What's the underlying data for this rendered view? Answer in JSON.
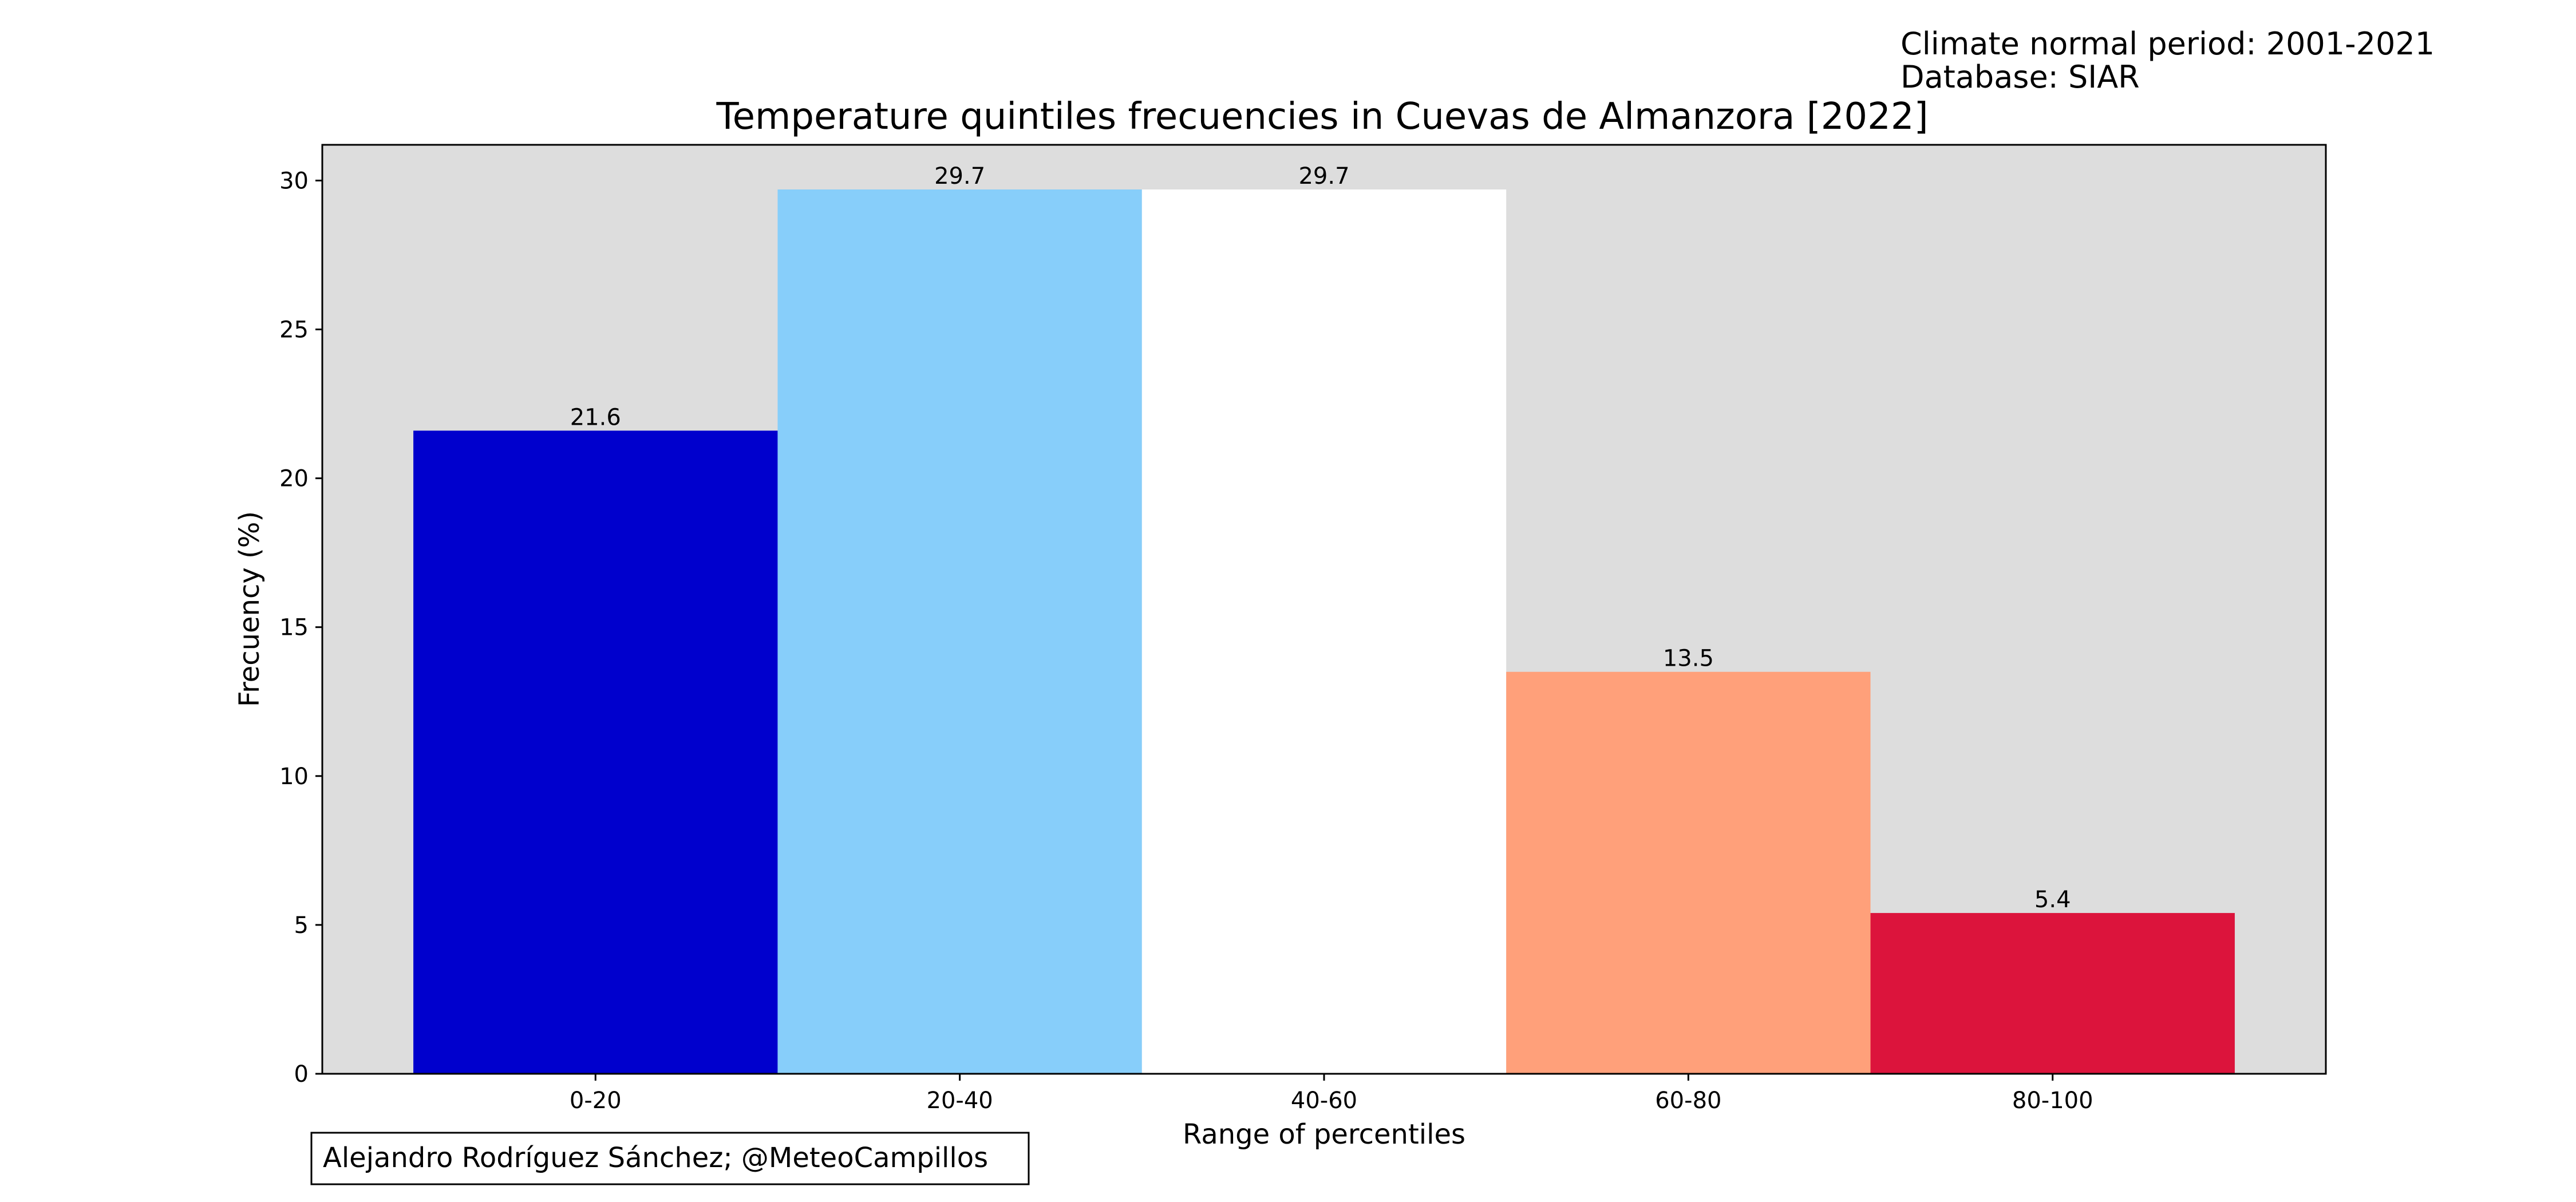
{
  "meta": {
    "climate_period": "Climate normal period: 2001-2021",
    "database": "Database: SIAR"
  },
  "credit": "Alejandro Rodríguez Sánchez; @MeteoCampillos",
  "chart_data": {
    "type": "bar",
    "title": "Temperature quintiles frecuencies in Cuevas de Almanzora [2022]",
    "xlabel": "Range of percentiles",
    "ylabel": "Frecuency (%)",
    "categories": [
      "0-20",
      "20-40",
      "40-60",
      "60-80",
      "80-100"
    ],
    "values": [
      21.6,
      29.7,
      29.7,
      13.5,
      5.4
    ],
    "value_labels": [
      "21.6",
      "29.7",
      "29.7",
      "13.5",
      "5.4"
    ],
    "bar_colors": [
      "#0000cd",
      "#87cefa",
      "#ffffff",
      "#ffa07a",
      "#dc143c"
    ],
    "plot_background": "#dddddd",
    "ylim": [
      0,
      31.2
    ],
    "yticks": [
      0,
      5,
      10,
      15,
      20,
      25,
      30
    ],
    "grid": false,
    "legend": "none"
  }
}
